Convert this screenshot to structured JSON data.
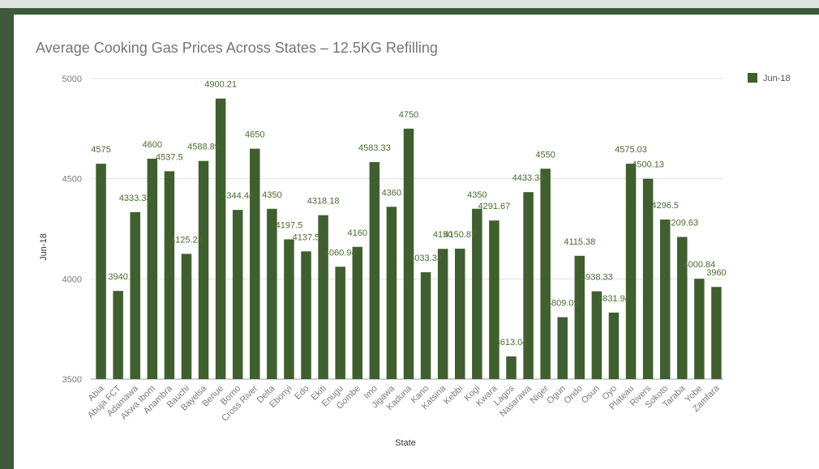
{
  "chart_data": {
    "type": "bar",
    "title": "Average Cooking Gas Prices Across States – 12.5KG Refilling",
    "xlabel": "State",
    "ylabel": "Jun-18",
    "ylim": [
      3500,
      5000
    ],
    "yticks": [
      3500,
      4000,
      4500,
      5000
    ],
    "grid": true,
    "legend_position": "right",
    "bar_color": "#3f5f2f",
    "label_color": "#4a6b2e",
    "series": [
      {
        "name": "Jun-18",
        "values": [
          4575,
          3940,
          4333.33,
          4600,
          4537.5,
          4125.23,
          4588.89,
          4900.21,
          4344.44,
          4650,
          4350,
          4197.5,
          4137.5,
          4318.18,
          4060.94,
          4160,
          4583.33,
          4360,
          4750,
          4033.33,
          4150,
          4150.87,
          4350,
          4291.67,
          3613.04,
          4433.33,
          4550,
          3809.09,
          4115.38,
          3938.33,
          3831.94,
          4575.03,
          4500.13,
          4296.5,
          4209.63,
          4000.84,
          3960
        ]
      }
    ],
    "data_labels": [
      "4575",
      "3940",
      "4333.33",
      "4600",
      "4537.5",
      "4125.23",
      "4588.89",
      "4900.21",
      "4344.44",
      "4650",
      "4350",
      "4197.5",
      "4137.5",
      "4318.18",
      "4060.94",
      "4160",
      "4583.33",
      "4360",
      "4750",
      "4033.33",
      "4150",
      "4150.87",
      "4350",
      "4291.67",
      "3613.04",
      "4433.33",
      "4550",
      "3809.09",
      "4115.38",
      "3938.33",
      "3831.94",
      "4575.03",
      "4500.13",
      "4296.5",
      "4209.63",
      "4000.84",
      "3960"
    ],
    "categories": [
      "Abia",
      "Abuja FCT",
      "Adamawa",
      "Akwa Ibom",
      "Anambra",
      "Bauchi",
      "Bayelsa",
      "Benue",
      "Borno",
      "Cross River",
      "Delta",
      "Ebonyi",
      "Edo",
      "Ekiti",
      "Enugu",
      "Gombe",
      "Imo",
      "Jigawa",
      "Kaduna",
      "Kano",
      "Katsina",
      "Kebbi",
      "Kogi",
      "Kwara",
      "Lagos",
      "Nasarawa",
      "Niger",
      "Ogun",
      "Ondo",
      "Osun",
      "Oyo",
      "Plateau",
      "Rivers",
      "Sokoto",
      "Taraba",
      "Yobe",
      "Zamfara"
    ]
  }
}
